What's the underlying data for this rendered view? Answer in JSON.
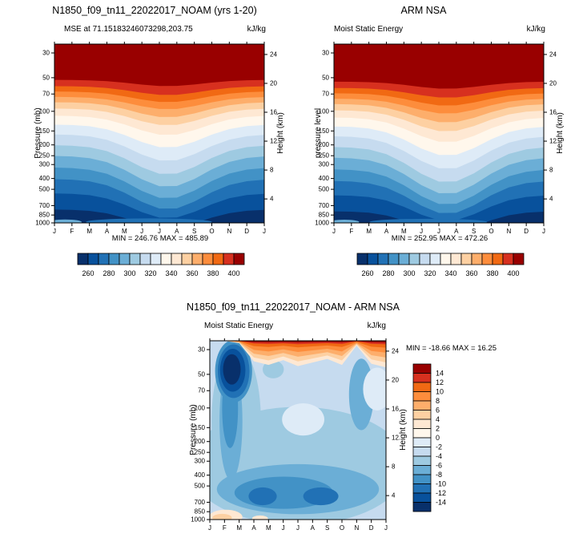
{
  "page": {
    "background": "#ffffff"
  },
  "palette": [
    "#08306b",
    "#08519c",
    "#2171b5",
    "#4292c6",
    "#6baed6",
    "#9ecae1",
    "#c6dbef",
    "#deebf7",
    "#fff7ec",
    "#fee8d3",
    "#fdd0a2",
    "#fdae6b",
    "#fd8d3c",
    "#f16913",
    "#d7301f",
    "#990000"
  ],
  "months": [
    "J",
    "F",
    "M",
    "A",
    "M",
    "J",
    "J",
    "A",
    "S",
    "O",
    "N",
    "D",
    "J"
  ],
  "pressure_ticks": [
    30,
    50,
    70,
    100,
    150,
    200,
    250,
    300,
    400,
    500,
    700,
    850,
    1000
  ],
  "height_ticks": [
    24,
    20,
    16,
    12,
    8,
    4
  ],
  "chart_data": [
    {
      "id": "model",
      "type": "filled-contour",
      "title": "N1850_f09_tn11_22022017_NOAM (yrs 1-20)",
      "subtitle": "MSE at 71.15183246073298,203.75",
      "units": "kJ/kg",
      "ylabel_left": "Pressure (mb)",
      "ylabel_right": "Height (km)",
      "min": 246.76,
      "max": 485.89,
      "stats": "MIN = 246.76 MAX = 485.89",
      "contour_levels_start": 250,
      "contour_levels_step": 10,
      "contour_levels_end": 410,
      "colorbar_labels": [
        "260",
        "280",
        "300",
        "320",
        "340",
        "360",
        "380",
        "400"
      ],
      "bands": [
        {
          "level": 400,
          "c": 14,
          "edge": 0.2,
          "mid": 0.235
        },
        {
          "level": 390,
          "c": 13,
          "edge": 0.235,
          "mid": 0.285
        },
        {
          "level": 380,
          "c": 12,
          "edge": 0.265,
          "mid": 0.325
        },
        {
          "level": 370,
          "c": 11,
          "edge": 0.295,
          "mid": 0.365
        },
        {
          "level": 360,
          "c": 10,
          "edge": 0.325,
          "mid": 0.41
        },
        {
          "level": 350,
          "c": 9,
          "edge": 0.36,
          "mid": 0.455
        },
        {
          "level": 340,
          "c": 8,
          "edge": 0.4,
          "mid": 0.51
        },
        {
          "level": 330,
          "c": 7,
          "edge": 0.45,
          "mid": 0.58
        },
        {
          "level": 320,
          "c": 6,
          "edge": 0.505,
          "mid": 0.655
        },
        {
          "level": 310,
          "c": 5,
          "edge": 0.565,
          "mid": 0.73
        },
        {
          "level": 300,
          "c": 4,
          "edge": 0.625,
          "mid": 0.8
        },
        {
          "level": 290,
          "c": 3,
          "edge": 0.69,
          "mid": 0.865
        },
        {
          "level": 280,
          "c": 2,
          "edge": 0.755,
          "mid": 0.925
        },
        {
          "level": 270,
          "c": 1,
          "edge": 0.835,
          "mid": 0.975
        },
        {
          "level": 260,
          "c": 0,
          "edge": 0.925,
          "mid": 1.03
        }
      ],
      "surface_strips": [
        {
          "x": 0.45,
          "y": 0.995,
          "rx": 0.3,
          "ry": 0.02,
          "c": 2
        },
        {
          "x": 0.05,
          "y": 0.995,
          "rx": 0.08,
          "ry": 0.014,
          "c": 4
        }
      ]
    },
    {
      "id": "obs",
      "type": "filled-contour",
      "title": "ARM NSA",
      "subtitle": "Moist Static Energy",
      "units": "kJ/kg",
      "ylabel_left": "pressure level",
      "ylabel_right": "Height (km)",
      "min": 252.95,
      "max": 472.26,
      "stats": "MIN = 252.95 MAX = 472.26",
      "contour_levels_start": 250,
      "contour_levels_step": 10,
      "contour_levels_end": 410,
      "colorbar_labels": [
        "260",
        "280",
        "300",
        "320",
        "340",
        "360",
        "380",
        "400"
      ],
      "bands": [
        {
          "level": 400,
          "c": 14,
          "edge": 0.21,
          "mid": 0.25
        },
        {
          "level": 390,
          "c": 13,
          "edge": 0.245,
          "mid": 0.3
        },
        {
          "level": 380,
          "c": 12,
          "edge": 0.275,
          "mid": 0.345
        },
        {
          "level": 370,
          "c": 11,
          "edge": 0.305,
          "mid": 0.39
        },
        {
          "level": 360,
          "c": 10,
          "edge": 0.335,
          "mid": 0.44
        },
        {
          "level": 350,
          "c": 9,
          "edge": 0.37,
          "mid": 0.49
        },
        {
          "level": 340,
          "c": 8,
          "edge": 0.41,
          "mid": 0.55
        },
        {
          "level": 330,
          "c": 7,
          "edge": 0.46,
          "mid": 0.625
        },
        {
          "level": 320,
          "c": 6,
          "edge": 0.515,
          "mid": 0.7
        },
        {
          "level": 310,
          "c": 5,
          "edge": 0.575,
          "mid": 0.775
        },
        {
          "level": 300,
          "c": 4,
          "edge": 0.635,
          "mid": 0.84
        },
        {
          "level": 290,
          "c": 3,
          "edge": 0.7,
          "mid": 0.9
        },
        {
          "level": 280,
          "c": 2,
          "edge": 0.765,
          "mid": 0.95
        },
        {
          "level": 270,
          "c": 1,
          "edge": 0.845,
          "mid": 0.99
        },
        {
          "level": 260,
          "c": 0,
          "edge": 0.935,
          "mid": 1.05
        }
      ],
      "surface_strips": [
        {
          "x": 0.45,
          "y": 0.995,
          "rx": 0.28,
          "ry": 0.018,
          "c": 2
        },
        {
          "x": 0.05,
          "y": 0.995,
          "rx": 0.07,
          "ry": 0.013,
          "c": 4
        }
      ]
    },
    {
      "id": "diff",
      "type": "filled-contour-difference",
      "title": "N1850_f09_tn11_22022017_NOAM - ARM NSA",
      "subtitle": "Moist Static Energy",
      "units": "kJ/kg",
      "ylabel_left": "Pressure (mb)",
      "ylabel_right": "Height (km)",
      "min": -18.66,
      "max": 16.25,
      "stats": "MIN = -18.66 MAX =  16.25",
      "contour_levels_start": -16,
      "contour_levels_step": 2,
      "contour_levels_end": 16,
      "colorbar_labels": [
        "14",
        "12",
        "10",
        "8",
        "6",
        "4",
        "2",
        "0",
        "-2",
        "-4",
        "-6",
        "-8",
        "-10",
        "-12",
        "-14"
      ],
      "background_color_index": 6,
      "warm_band": {
        "month_strength": [
          0,
          0,
          0.1,
          0.85,
          1.0,
          0.8,
          1.05,
          0.9,
          0.75,
          1.0,
          0.2,
          0.95,
          1.1
        ],
        "layers": [
          {
            "h": 0.135,
            "c": 9
          },
          {
            "h": 0.11,
            "c": 10
          },
          {
            "h": 0.085,
            "c": 11
          },
          {
            "h": 0.06,
            "c": 12
          },
          {
            "h": 0.035,
            "c": 13
          },
          {
            "h": 0.018,
            "c": 14
          },
          {
            "h": 0.009,
            "c": 15
          }
        ]
      },
      "blobs": [
        {
          "x": 0.5,
          "y": 0.7,
          "rx": 0.62,
          "ry": 0.33,
          "c": 5
        },
        {
          "x": 0.15,
          "y": 0.45,
          "rx": 0.14,
          "ry": 0.42,
          "c": 5
        },
        {
          "x": 0.53,
          "y": 0.44,
          "rx": 0.12,
          "ry": 0.09,
          "c": 7
        },
        {
          "x": 0.5,
          "y": 0.83,
          "rx": 0.46,
          "ry": 0.14,
          "c": 4
        },
        {
          "x": 0.42,
          "y": 0.85,
          "rx": 0.28,
          "ry": 0.09,
          "c": 3
        },
        {
          "x": 0.63,
          "y": 0.87,
          "rx": 0.1,
          "ry": 0.05,
          "c": 2
        },
        {
          "x": 0.3,
          "y": 0.87,
          "rx": 0.08,
          "ry": 0.05,
          "c": 2
        },
        {
          "x": 0.12,
          "y": 0.45,
          "rx": 0.065,
          "ry": 0.33,
          "c": 4
        },
        {
          "x": 0.115,
          "y": 0.38,
          "rx": 0.045,
          "ry": 0.22,
          "c": 3
        },
        {
          "x": 0.86,
          "y": 0.3,
          "rx": 0.07,
          "ry": 0.2,
          "c": 4
        },
        {
          "x": 0.36,
          "y": 0.16,
          "rx": 0.06,
          "ry": 0.05,
          "c": 5
        },
        {
          "x": 0.95,
          "y": 0.27,
          "rx": 0.08,
          "ry": 0.12,
          "c": 7
        },
        {
          "x": 0.135,
          "y": 0.17,
          "rx": 0.105,
          "ry": 0.175,
          "c": 3
        },
        {
          "x": 0.135,
          "y": 0.17,
          "rx": 0.09,
          "ry": 0.15,
          "c": 2
        },
        {
          "x": 0.13,
          "y": 0.165,
          "rx": 0.072,
          "ry": 0.12,
          "c": 1
        },
        {
          "x": 0.125,
          "y": 0.16,
          "rx": 0.05,
          "ry": 0.085,
          "c": 0
        },
        {
          "x": 0.09,
          "y": 0.985,
          "rx": 0.095,
          "ry": 0.04,
          "c": 9
        },
        {
          "x": 0.07,
          "y": 0.99,
          "rx": 0.055,
          "ry": 0.022,
          "c": 10
        },
        {
          "x": 0.285,
          "y": 0.995,
          "rx": 0.045,
          "ry": 0.018,
          "c": 9
        }
      ]
    }
  ]
}
